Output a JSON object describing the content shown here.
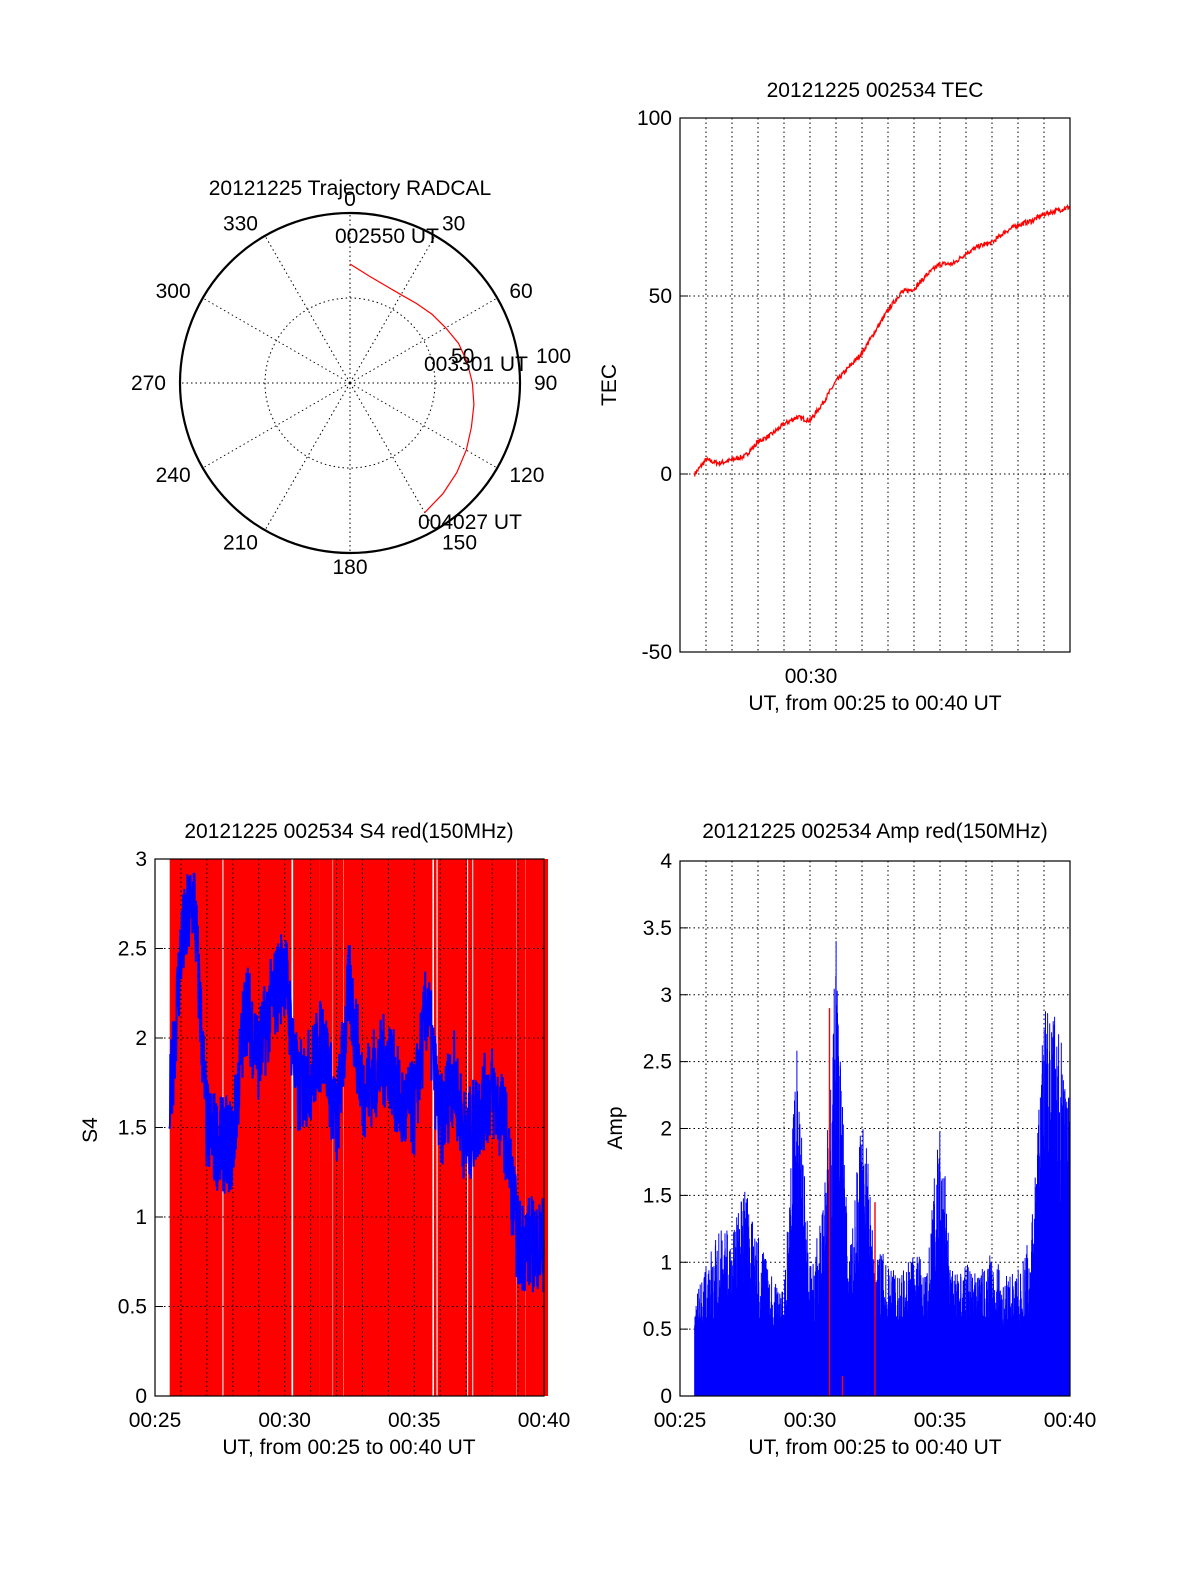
{
  "chart_data": [
    {
      "id": "polar",
      "type": "scatter",
      "coordinate_system": "polar",
      "title": "20121225 Trajectory RADCAL",
      "azimuth_labels": [
        "0",
        "30",
        "60",
        "90",
        "120",
        "150",
        "180",
        "210",
        "240",
        "270",
        "300",
        "330"
      ],
      "ring_labels": [
        "50",
        "100"
      ],
      "radius_range": [
        0,
        100
      ],
      "grid": true,
      "series": [
        {
          "color": "#ff0000",
          "points": [
            {
              "az": 0,
              "r": 70
            },
            {
              "az": 10,
              "r": 64
            },
            {
              "az": 20,
              "r": 61
            },
            {
              "az": 30,
              "r": 60
            },
            {
              "az": 40,
              "r": 61
            },
            {
              "az": 50,
              "r": 63
            },
            {
              "az": 60,
              "r": 65
            },
            {
              "az": 70,
              "r": 68
            },
            {
              "az": 80,
              "r": 70
            },
            {
              "az": 90,
              "r": 72
            },
            {
              "az": 100,
              "r": 74
            },
            {
              "az": 110,
              "r": 76
            },
            {
              "az": 120,
              "r": 79
            },
            {
              "az": 130,
              "r": 82
            },
            {
              "az": 140,
              "r": 85
            },
            {
              "az": 150,
              "r": 88
            }
          ]
        }
      ],
      "annotations": [
        "002550 UT",
        "003301 UT",
        "004027 UT"
      ]
    },
    {
      "id": "tec",
      "type": "line",
      "title": "20121225 002534 TEC",
      "xlabel": "UT, from 00:25 to 00:40 UT",
      "ylabel": "TEC",
      "xlim": [
        "00:25",
        "00:40"
      ],
      "ylim": [
        -50,
        100
      ],
      "yticks": [
        "100",
        "50",
        "0",
        "-50"
      ],
      "xtick_labels": [
        "00:30"
      ],
      "grid": true,
      "series": [
        {
          "color": "#ff0000",
          "x": [
            "00:25:34",
            "00:26",
            "00:26:30",
            "00:27",
            "00:27:30",
            "00:28",
            "00:28:30",
            "00:29",
            "00:29:30",
            "00:30",
            "00:30:30",
            "00:31",
            "00:31:30",
            "00:32",
            "00:32:30",
            "00:33",
            "00:33:30",
            "00:34",
            "00:34:30",
            "00:35",
            "00:35:30",
            "00:36",
            "00:36:30",
            "00:37",
            "00:37:30",
            "00:38",
            "00:38:30",
            "00:39",
            "00:39:30",
            "00:40"
          ],
          "y": [
            0,
            4,
            3,
            4,
            5,
            9,
            11,
            14,
            16,
            15,
            20,
            26,
            30,
            34,
            40,
            46,
            51,
            52,
            56,
            59,
            59,
            62,
            64,
            65,
            68,
            70,
            71,
            73,
            74,
            75
          ]
        }
      ]
    },
    {
      "id": "s4",
      "type": "line",
      "title": "20121225 002534 S4 red(150MHz)",
      "xlabel": "UT, from 00:25 to 00:40 UT",
      "ylabel": "S4",
      "xlim": [
        "00:25",
        "00:40"
      ],
      "ylim": [
        0,
        3
      ],
      "yticks": [
        "0",
        "0.5",
        "1",
        "1.5",
        "2",
        "2.5",
        "3"
      ],
      "xtick_labels": [
        "00:25",
        "00:30",
        "00:35",
        "00:40"
      ],
      "grid": true,
      "series": [
        {
          "color": "#0000ff",
          "x": [
            "00:25:34",
            "00:26",
            "00:26:30",
            "00:27",
            "00:27:30",
            "00:28",
            "00:28:30",
            "00:29",
            "00:29:30",
            "00:30",
            "00:30:30",
            "00:31",
            "00:31:30",
            "00:32",
            "00:32:30",
            "00:33",
            "00:33:30",
            "00:34",
            "00:34:30",
            "00:35",
            "00:35:30",
            "00:36",
            "00:36:30",
            "00:37",
            "00:37:30",
            "00:38",
            "00:38:30",
            "00:39",
            "00:39:30",
            "00:40"
          ],
          "y": [
            1.6,
            2.5,
            2.8,
            1.5,
            1.4,
            1.4,
            2.2,
            1.9,
            2.2,
            2.4,
            1.7,
            1.8,
            2.0,
            1.5,
            2.3,
            1.7,
            1.8,
            1.9,
            1.6,
            1.6,
            2.2,
            1.5,
            1.8,
            1.4,
            1.6,
            1.7,
            1.5,
            0.85,
            0.85,
            0.85
          ]
        }
      ]
    },
    {
      "id": "amp",
      "type": "bar",
      "title": "20121225 002534 Amp red(150MHz)",
      "xlabel": "UT, from 00:25 to 00:40 UT",
      "ylabel": "Amp",
      "xlim": [
        "00:25",
        "00:40"
      ],
      "ylim": [
        0,
        4
      ],
      "yticks": [
        "0",
        "0.5",
        "1",
        "1.5",
        "2",
        "2.5",
        "3",
        "3.5",
        "4"
      ],
      "xtick_labels": [
        "00:25",
        "00:30",
        "00:35",
        "00:40"
      ],
      "grid": true,
      "series": [
        {
          "color": "#0000ff",
          "x": [
            "00:25:34",
            "00:26",
            "00:26:30",
            "00:27",
            "00:27:30",
            "00:28",
            "00:28:30",
            "00:29",
            "00:29:30",
            "00:30",
            "00:30:30",
            "00:31",
            "00:31:30",
            "00:32",
            "00:32:30",
            "00:33",
            "00:33:30",
            "00:34",
            "00:34:30",
            "00:35",
            "00:35:30",
            "00:36",
            "00:36:30",
            "00:37",
            "00:37:30",
            "00:38",
            "00:38:30",
            "00:39",
            "00:39:30",
            "00:40"
          ],
          "y": [
            0.7,
            1.0,
            1.3,
            1.2,
            1.6,
            1.2,
            0.9,
            0.8,
            2.6,
            1.0,
            1.4,
            3.5,
            1.0,
            2.2,
            1.2,
            1.0,
            0.9,
            1.2,
            0.9,
            2.2,
            0.9,
            1.0,
            0.9,
            1.1,
            0.9,
            1.0,
            1.2,
            2.9,
            2.9,
            2.2
          ]
        },
        {
          "color": "#ff0000",
          "x": [
            "00:30:45",
            "00:31:15",
            "00:32:30"
          ],
          "y": [
            2.9,
            0.15,
            1.45
          ]
        }
      ]
    }
  ]
}
